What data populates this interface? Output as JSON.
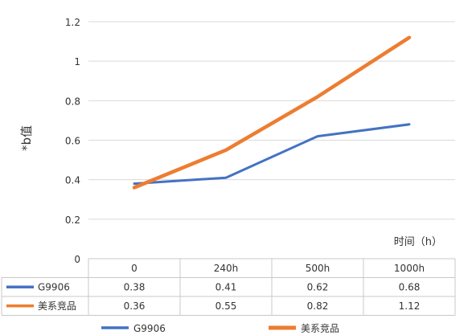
{
  "chart_data": {
    "type": "line",
    "categories": [
      "0",
      "240h",
      "500h",
      "1000h"
    ],
    "series": [
      {
        "name": "G9906",
        "values": [
          0.38,
          0.41,
          0.62,
          0.68
        ],
        "color": "#4472C4"
      },
      {
        "name": "美系竞品",
        "values": [
          0.36,
          0.55,
          0.82,
          1.12
        ],
        "color": "#ED7D31"
      }
    ],
    "xlabel": "时间（h）",
    "ylabel": "*b值",
    "ylim": [
      0,
      1.2
    ],
    "yticks": [
      0,
      0.2,
      0.4,
      0.6,
      0.8,
      1,
      1.2
    ],
    "ytick_labels": [
      "0",
      "0.2",
      "0.4",
      "0.6",
      "0.8",
      "1",
      "1.2"
    ],
    "grid": true,
    "data_table": true,
    "legend_position": "bottom"
  }
}
